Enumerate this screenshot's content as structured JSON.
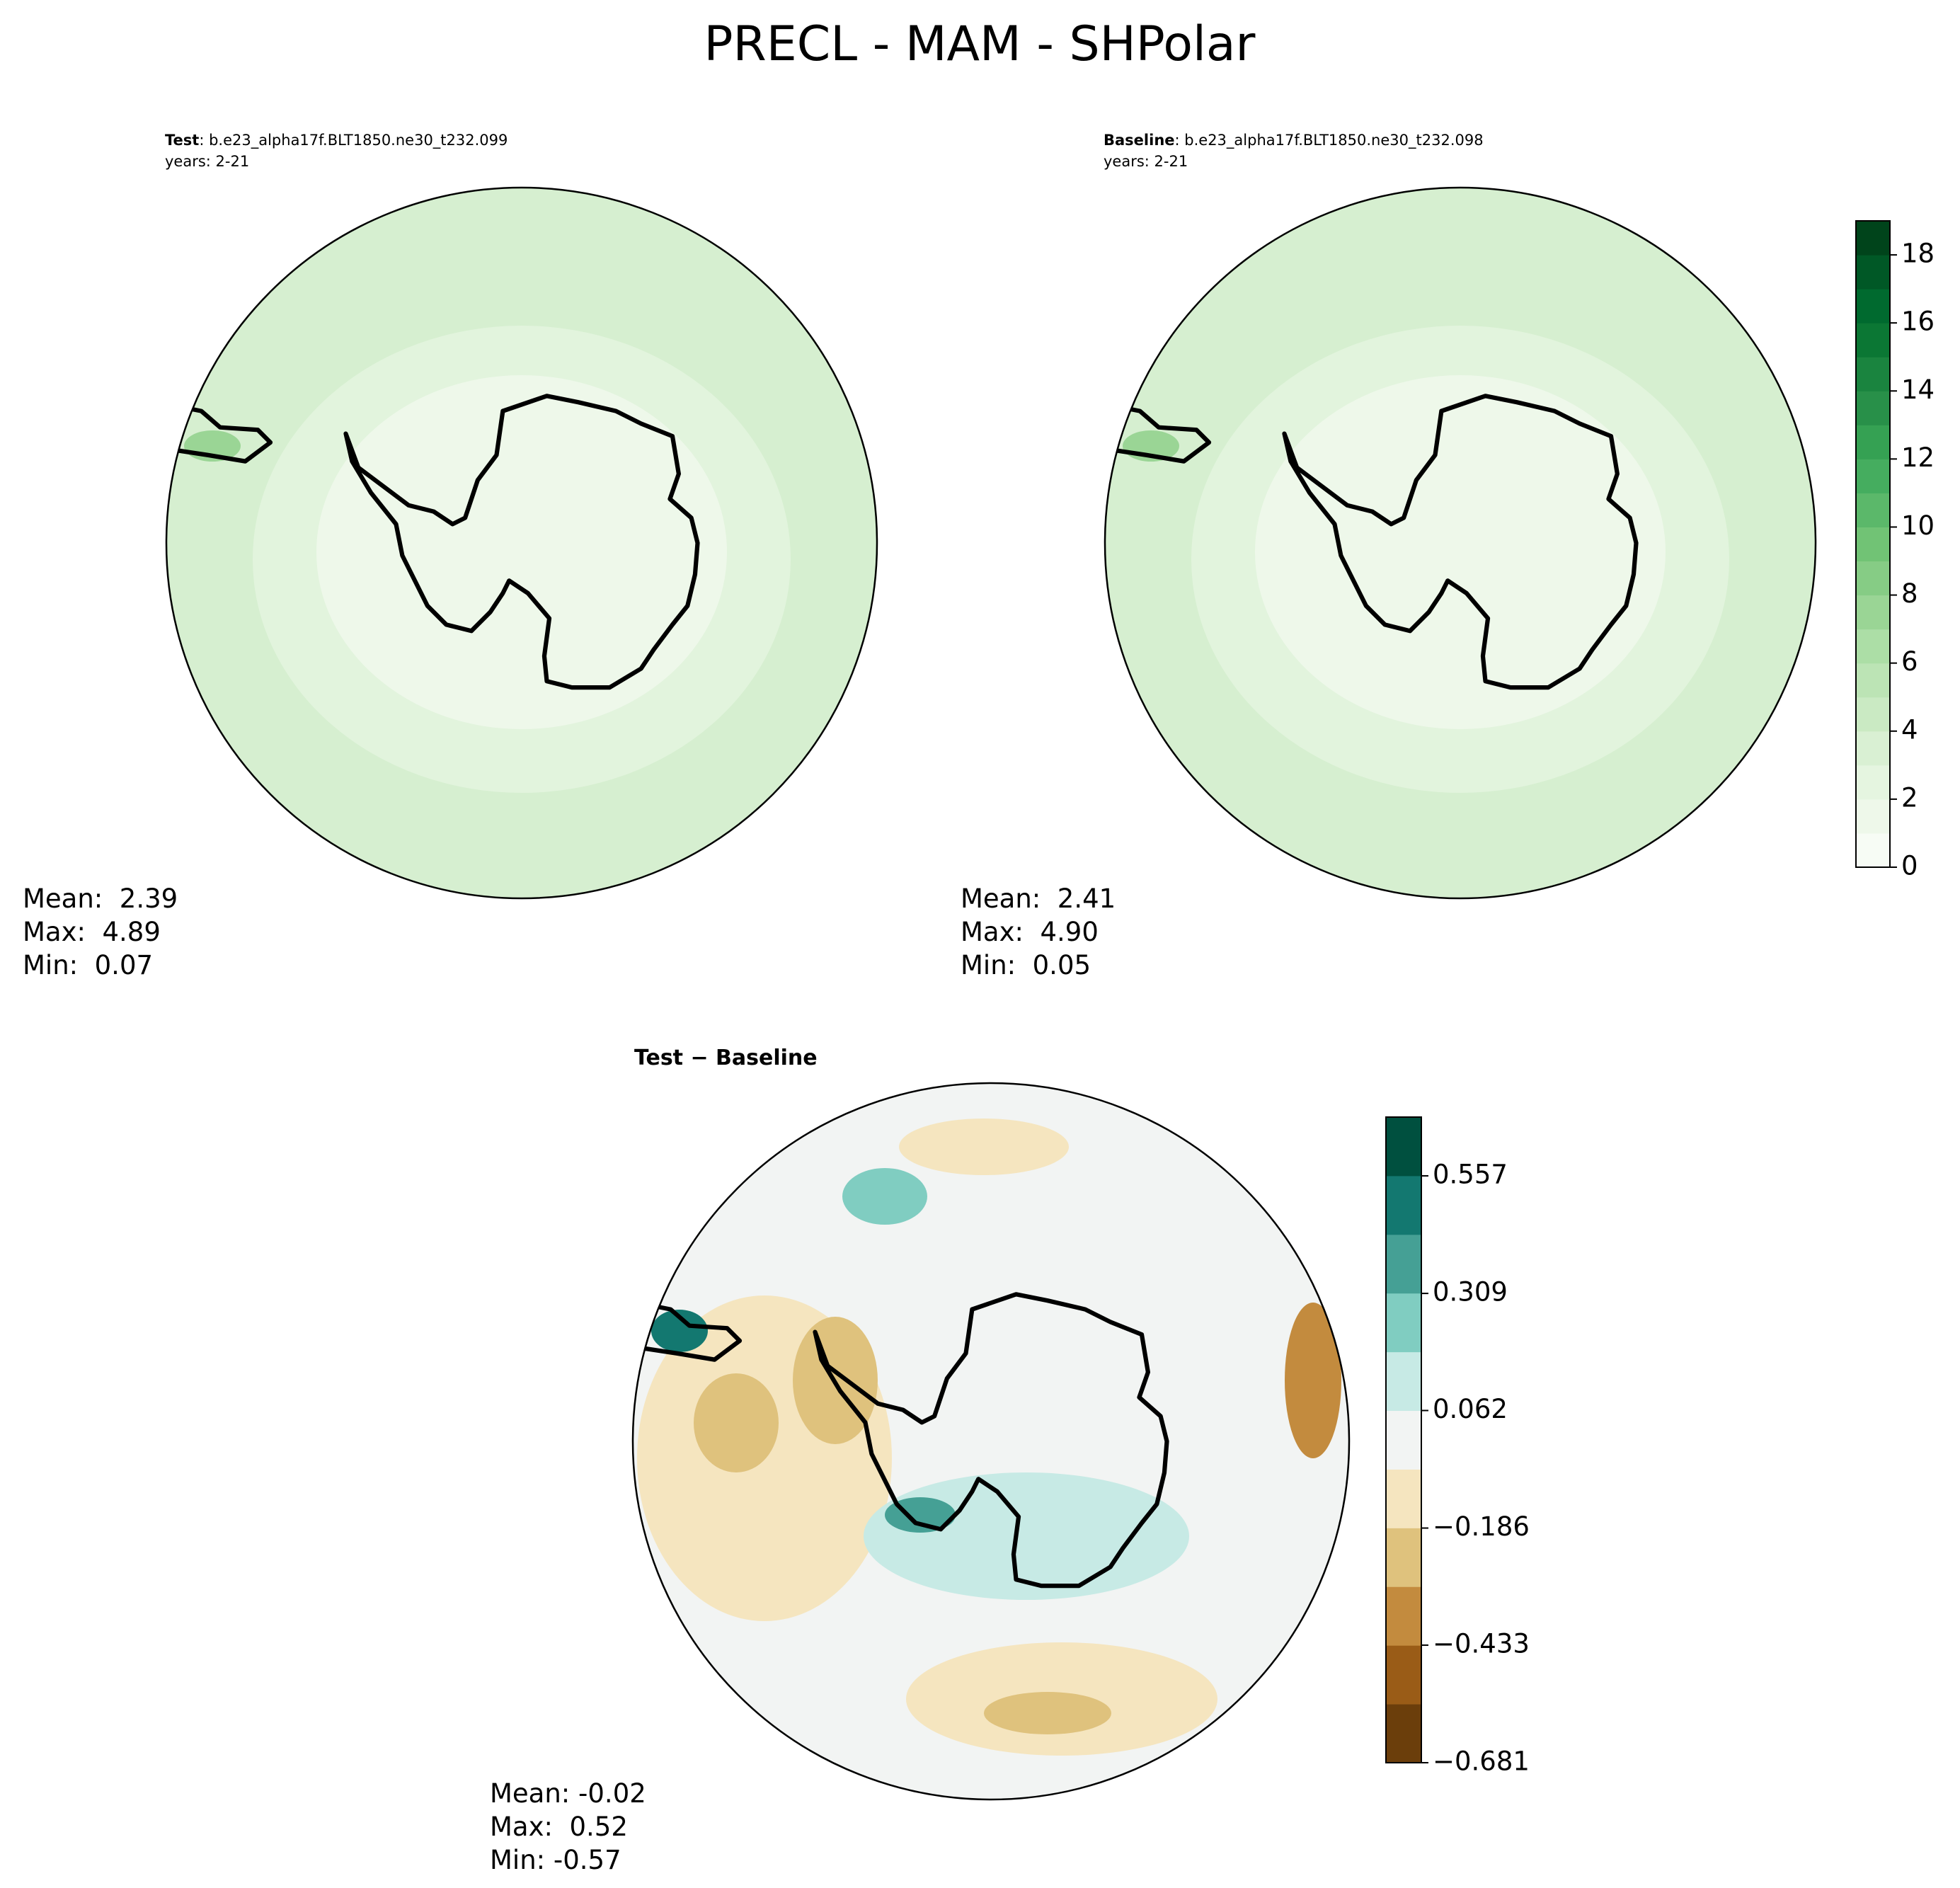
{
  "title": "PRECL - MAM - SHPolar",
  "panels": [
    {
      "label": "Test",
      "case": ": b.e23_alpha17f.BLT1850.ne30_t232.099",
      "years": "years: 2-21",
      "stats": [
        "Mean:  2.39",
        "Max:  4.89",
        "Min:  0.07"
      ]
    },
    {
      "label": "Baseline",
      "case": ": b.e23_alpha17f.BLT1850.ne30_t232.098",
      "years": "years: 2-21",
      "stats": [
        "Mean:  2.41",
        "Max:  4.90",
        "Min:  0.05"
      ]
    },
    {
      "label": "Test − Baseline",
      "stats": [
        "Mean: -0.02",
        "Max:  0.52",
        "Min: -0.57"
      ]
    }
  ],
  "colorbars": [
    {
      "lim": [
        0,
        19
      ],
      "ticks": [
        0,
        2,
        4,
        6,
        8,
        10,
        12,
        14,
        16,
        18
      ],
      "colors": [
        "#f7fcf5",
        "#eef8ea",
        "#e5f5e0",
        "#d9f0d3",
        "#caeac3",
        "#bce4b5",
        "#acdea6",
        "#9ad595",
        "#86cc85",
        "#71c375",
        "#5bb86a",
        "#45ad5f",
        "#35a153",
        "#289049",
        "#1a843f",
        "#0b7734",
        "#006a2f",
        "#005826",
        "#00441b"
      ]
    },
    {
      "lim": [
        -0.681,
        0.681
      ],
      "ticks": [
        {
          "value": -0.681,
          "label": "−0.681"
        },
        {
          "value": -0.433,
          "label": "−0.433"
        },
        {
          "value": -0.186,
          "label": "−0.186"
        },
        {
          "value": 0.062,
          "label": "0.062"
        },
        {
          "value": 0.309,
          "label": "0.309"
        },
        {
          "value": 0.557,
          "label": "0.557"
        }
      ],
      "colors": [
        "#6b3e0b",
        "#9a5c17",
        "#c38b3e",
        "#dfc27d",
        "#f5e5bf",
        "#f2f4f3",
        "#c7eae5",
        "#80cdc1",
        "#45a095",
        "#137870",
        "#00503f"
      ]
    }
  ]
}
